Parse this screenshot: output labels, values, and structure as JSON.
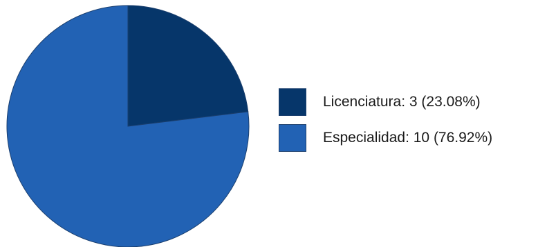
{
  "chart_data": {
    "type": "pie",
    "categories": [
      "Licenciatura",
      "Especialidad"
    ],
    "values": [
      3,
      10
    ],
    "percentages": [
      23.08,
      76.92
    ],
    "colors": [
      "#06366a",
      "#2262b4"
    ],
    "legend_position": "right"
  },
  "legend": {
    "items": [
      {
        "label": "Licenciatura: 3 (23.08%)",
        "color": "#06366a"
      },
      {
        "label": "Especialidad: 10 (76.92%)",
        "color": "#2262b4"
      }
    ]
  }
}
